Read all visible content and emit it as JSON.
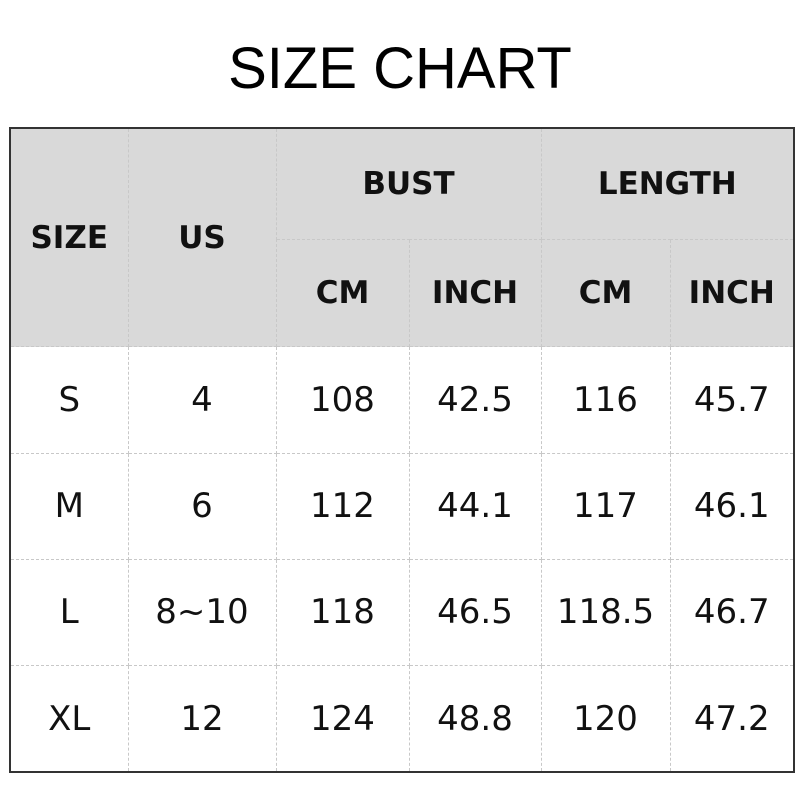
{
  "title": "SIZE CHART",
  "headers": {
    "size": "SIZE",
    "us": "US",
    "bust": "BUST",
    "length": "LENGTH",
    "cm": "CM",
    "inch": "INCH"
  },
  "rows": [
    {
      "size": "S",
      "us": "4",
      "bust_cm": "108",
      "bust_inch": "42.5",
      "length_cm": "116",
      "length_inch": "45.7"
    },
    {
      "size": "M",
      "us": "6",
      "bust_cm": "112",
      "bust_inch": "44.1",
      "length_cm": "117",
      "length_inch": "46.1"
    },
    {
      "size": "L",
      "us": "8~10",
      "bust_cm": "118",
      "bust_inch": "46.5",
      "length_cm": "118.5",
      "length_inch": "46.7"
    },
    {
      "size": "XL",
      "us": "12",
      "bust_cm": "124",
      "bust_inch": "48.8",
      "length_cm": "120",
      "length_inch": "47.2"
    }
  ],
  "colors": {
    "header_bg": "#d9d9d9"
  }
}
